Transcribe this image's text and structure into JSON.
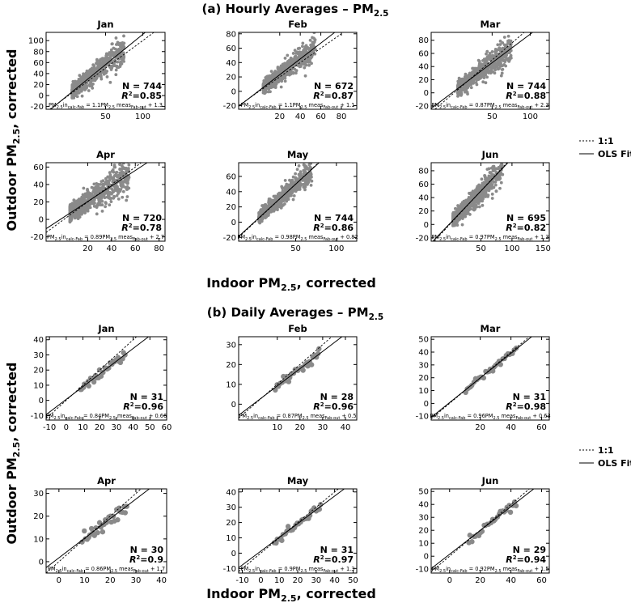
{
  "figure": {
    "section_a_title": "(a) Hourly Averages – PM",
    "section_a_title_sub": "2.5",
    "section_b_title": "(b) Daily Averages – PM",
    "section_b_title_sub": "2.5",
    "xlabel_main": "Indoor PM",
    "xlabel_sub": "2.5",
    "xlabel_tail": ", corrected",
    "ylabel_main": "Outdoor PM",
    "ylabel_sub": "2.5",
    "ylabel_tail": ", corrected",
    "legend": {
      "ref_line": "1:1",
      "fit_line": "OLS Fit"
    },
    "colors": {
      "points": "#8a8a8a",
      "lines": "#000000",
      "axes": "#000000"
    }
  },
  "chart_data": [
    {
      "type": "scatter",
      "section": "Hourly",
      "title": "Jan",
      "xticks": [
        50,
        100
      ],
      "xlim": [
        -30,
        130
      ],
      "yticks": [
        -20,
        0,
        20,
        40,
        60,
        80,
        100
      ],
      "ylim": [
        -25,
        115
      ],
      "stats": {
        "n_text": "N = 744",
        "r2_value": "=0.85"
      },
      "fit": {
        "slope": 1.1,
        "intercept": 1.3
      },
      "equation": {
        "slope_text": "1.1",
        "intercept_text": "+ 1.3"
      },
      "points": {
        "count": 744,
        "x_range": [
          5,
          75
        ],
        "spread": 9
      }
    },
    {
      "type": "scatter",
      "section": "Hourly",
      "title": "Feb",
      "xticks": [
        20,
        40,
        60,
        80
      ],
      "xlim": [
        -20,
        95
      ],
      "yticks": [
        -20,
        0,
        20,
        40,
        60,
        80
      ],
      "ylim": [
        -25,
        82
      ],
      "stats": {
        "n_text": "N = 672",
        "r2_value": "=0.87"
      },
      "fit": {
        "slope": 1.1,
        "intercept": 1.1
      },
      "equation": {
        "slope_text": "1.1",
        "intercept_text": "+ 1.1"
      },
      "points": {
        "count": 672,
        "x_range": [
          4,
          55
        ],
        "spread": 7
      }
    },
    {
      "type": "scatter",
      "section": "Hourly",
      "title": "Mar",
      "xticks": [
        50,
        100
      ],
      "xlim": [
        -30,
        125
      ],
      "yticks": [
        -20,
        0,
        20,
        40,
        60,
        80
      ],
      "ylim": [
        -25,
        92
      ],
      "stats": {
        "n_text": "N = 744",
        "r2_value": "=0.88"
      },
      "fit": {
        "slope": 0.87,
        "intercept": 2.3
      },
      "equation": {
        "slope_text": "0.87",
        "intercept_text": "+ 2.3"
      },
      "points": {
        "count": 744,
        "x_range": [
          5,
          75
        ],
        "spread": 8
      }
    },
    {
      "type": "scatter",
      "section": "Hourly",
      "title": "Apr",
      "xticks": [
        20,
        40,
        60,
        80
      ],
      "xlim": [
        -15,
        85
      ],
      "yticks": [
        -20,
        0,
        20,
        40,
        60
      ],
      "ylim": [
        -25,
        65
      ],
      "stats": {
        "n_text": "N = 720",
        "r2_value": "=0.78"
      },
      "fit": {
        "slope": 0.89,
        "intercept": 2.7
      },
      "equation": {
        "slope_text": "0.89",
        "intercept_text": "+ 2.7"
      },
      "points": {
        "count": 720,
        "x_range": [
          5,
          55
        ],
        "spread": 7
      }
    },
    {
      "type": "scatter",
      "section": "Hourly",
      "title": "May",
      "xticks": [
        50,
        100
      ],
      "xlim": [
        -20,
        125
      ],
      "yticks": [
        -20,
        0,
        20,
        40,
        60
      ],
      "ylim": [
        -25,
        78
      ],
      "stats": {
        "n_text": "N = 744",
        "r2_value": "=0.86"
      },
      "fit": {
        "slope": 0.98,
        "intercept": 0.82
      },
      "equation": {
        "slope_text": "0.98",
        "intercept_text": "+ 0.82"
      },
      "points": {
        "count": 744,
        "x_range": [
          5,
          70
        ],
        "spread": 6
      }
    },
    {
      "type": "scatter",
      "section": "Hourly",
      "title": "Jun",
      "xticks": [
        50,
        100,
        150
      ],
      "xlim": [
        -30,
        160
      ],
      "yticks": [
        -20,
        0,
        20,
        40,
        60,
        80
      ],
      "ylim": [
        -25,
        92
      ],
      "stats": {
        "n_text": "N = 695",
        "r2_value": "=0.82"
      },
      "fit": {
        "slope": 0.97,
        "intercept": 1.3
      },
      "equation": {
        "slope_text": "0.97",
        "intercept_text": "+ 1.3"
      },
      "points": {
        "count": 695,
        "x_range": [
          5,
          85
        ],
        "spread": 8
      }
    },
    {
      "type": "scatter",
      "section": "Daily",
      "title": "Jan",
      "xticks": [
        -10,
        0,
        10,
        20,
        30,
        40,
        50,
        60
      ],
      "xlim": [
        -12,
        60
      ],
      "yticks": [
        -10,
        0,
        10,
        20,
        30,
        40
      ],
      "ylim": [
        -13,
        42
      ],
      "stats": {
        "n_text": "N = 31",
        "r2_value": "=0.96"
      },
      "fit": {
        "slope": 0.84,
        "intercept": 0.66
      },
      "equation": {
        "slope_text": "0.84",
        "intercept_text": "+ 0.66"
      },
      "points": {
        "count": 31,
        "x_range": [
          8,
          36
        ],
        "spread": 1.5
      }
    },
    {
      "type": "scatter",
      "section": "Daily",
      "title": "Feb",
      "xticks": [
        10,
        20,
        30,
        40
      ],
      "xlim": [
        -7,
        45
      ],
      "yticks": [
        0,
        10,
        20,
        30
      ],
      "ylim": [
        -8,
        34
      ],
      "stats": {
        "n_text": "N = 28",
        "r2_value": "=0.96"
      },
      "fit": {
        "slope": 0.87,
        "intercept": 0.5
      },
      "equation": {
        "slope_text": "0.87",
        "intercept_text": "+ 0.5"
      },
      "points": {
        "count": 28,
        "x_range": [
          9,
          29
        ],
        "spread": 1.2
      }
    },
    {
      "type": "scatter",
      "section": "Daily",
      "title": "Mar",
      "xticks": [
        20,
        40,
        60
      ],
      "xlim": [
        -12,
        65
      ],
      "yticks": [
        -10,
        0,
        10,
        20,
        30,
        40,
        50
      ],
      "ylim": [
        -13,
        52
      ],
      "stats": {
        "n_text": "N = 31",
        "r2_value": "=0.98"
      },
      "fit": {
        "slope": 0.96,
        "intercept": 0.63
      },
      "equation": {
        "slope_text": "0.96",
        "intercept_text": "+ 0.63"
      },
      "points": {
        "count": 31,
        "x_range": [
          10,
          44
        ],
        "spread": 1.2
      }
    },
    {
      "type": "scatter",
      "section": "Daily",
      "title": "Apr",
      "xticks": [
        0,
        10,
        20,
        30,
        40
      ],
      "xlim": [
        -5,
        42
      ],
      "yticks": [
        0,
        10,
        20,
        30
      ],
      "ylim": [
        -5,
        32
      ],
      "stats": {
        "n_text": "N = 30",
        "r2_value": "=0.9"
      },
      "fit": {
        "slope": 0.86,
        "intercept": 1.7
      },
      "equation": {
        "slope_text": "0.86",
        "intercept_text": "+ 1.7"
      },
      "points": {
        "count": 30,
        "x_range": [
          9,
          27
        ],
        "spread": 1.5
      }
    },
    {
      "type": "scatter",
      "section": "Daily",
      "title": "May",
      "xticks": [
        -10,
        0,
        10,
        20,
        30,
        40,
        50
      ],
      "xlim": [
        -12,
        52
      ],
      "yticks": [
        -10,
        0,
        10,
        20,
        30,
        40
      ],
      "ylim": [
        -13,
        42
      ],
      "stats": {
        "n_text": "N = 31",
        "r2_value": "=0.97"
      },
      "fit": {
        "slope": 0.9,
        "intercept": 1.3
      },
      "equation": {
        "slope_text": "0.9",
        "intercept_text": "+ 1.3"
      },
      "points": {
        "count": 31,
        "x_range": [
          7,
          33
        ],
        "spread": 1.3
      }
    },
    {
      "type": "scatter",
      "section": "Daily",
      "title": "Jun",
      "xticks": [
        0,
        20,
        40,
        60
      ],
      "xlim": [
        -12,
        65
      ],
      "yticks": [
        -10,
        0,
        10,
        20,
        30,
        40,
        50
      ],
      "ylim": [
        -13,
        52
      ],
      "stats": {
        "n_text": "N = 29",
        "r2_value": "=0.94"
      },
      "fit": {
        "slope": 0.92,
        "intercept": 1.5
      },
      "equation": {
        "slope_text": "0.92",
        "intercept_text": "+ 1.5"
      },
      "points": {
        "count": 29,
        "x_range": [
          12,
          44
        ],
        "spread": 1.8
      }
    }
  ]
}
